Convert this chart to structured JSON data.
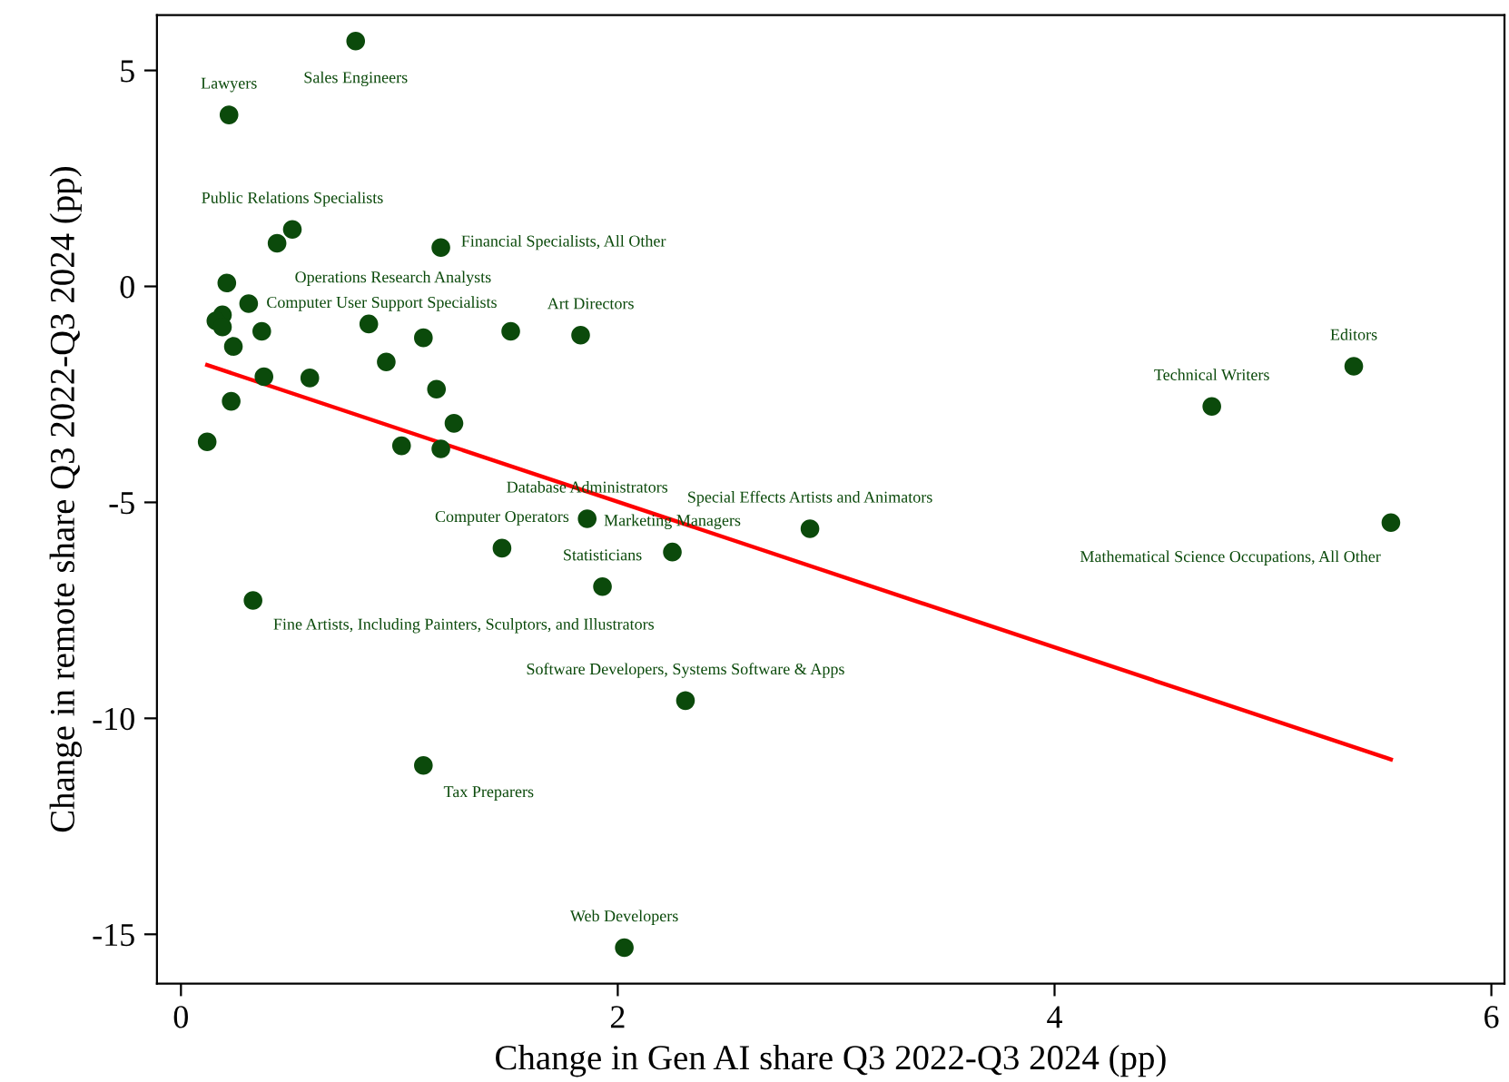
{
  "chart_data": {
    "type": "scatter",
    "xlabel": "Change in Gen AI share Q3 2022-Q3 2024 (pp)",
    "ylabel": "Change in remote share Q3 2022-Q3 2024 (pp)",
    "xlim": [
      -0.11,
      6.06
    ],
    "ylim": [
      -16.14,
      6.28
    ],
    "xticks": [
      0,
      2,
      4,
      6
    ],
    "yticks": [
      5,
      0,
      -5,
      -10,
      -15
    ],
    "grid": false,
    "legend": false,
    "marker": "circle",
    "series": [
      {
        "color": "#0b4a0b",
        "x": [
          0.8,
          0.22,
          0.51,
          0.44,
          1.19,
          0.21,
          0.19,
          0.16,
          0.19,
          0.31,
          0.37,
          0.86,
          1.11,
          1.51,
          1.83,
          0.24,
          0.94,
          0.38,
          0.59,
          1.17,
          0.23,
          1.25,
          0.12,
          1.01,
          1.19,
          1.86,
          1.47,
          2.25,
          2.88,
          1.93,
          0.33,
          2.31,
          1.11,
          2.03,
          5.37,
          4.72,
          5.54
        ],
        "values": [
          5.68,
          3.97,
          1.32,
          1.0,
          0.9,
          0.08,
          -0.66,
          -0.8,
          -0.94,
          -0.4,
          -1.04,
          -0.87,
          -1.19,
          -1.04,
          -1.13,
          -1.39,
          -1.75,
          -2.09,
          -2.12,
          -2.38,
          -2.66,
          -3.17,
          -3.6,
          -3.69,
          -3.76,
          -5.38,
          -6.06,
          -6.15,
          -5.61,
          -6.95,
          -7.27,
          -9.59,
          -11.09,
          -15.31,
          -1.85,
          -2.78,
          -5.47
        ]
      },
      {
        "type": "line",
        "color": "#ff0000",
        "line_style": "solid",
        "marker": "none",
        "x": [
          0.12,
          5.54
        ],
        "values": [
          -1.82,
          -10.95
        ]
      }
    ],
    "annotations": [
      {
        "text": "Sales Engineers",
        "x": 0.8,
        "y": 5.68
      },
      {
        "text": "Lawyers",
        "x": 0.22,
        "y": 3.97
      },
      {
        "text": "Public Relations Specialists",
        "x": 0.51,
        "y": 1.32
      },
      {
        "text": "Operations Research Analysts",
        "x": 0.44,
        "y": 1.0
      },
      {
        "text": "Financial Specialists, All Other",
        "x": 1.19,
        "y": 0.9
      },
      {
        "text": "Computer User Support Specialists",
        "x": 0.31,
        "y": -0.4
      },
      {
        "text": "Art Directors",
        "x": 1.83,
        "y": -1.13
      },
      {
        "text": "Database Administrators",
        "x": 1.86,
        "y": -5.38
      },
      {
        "text": "Computer Operators",
        "x": 1.47,
        "y": -6.06
      },
      {
        "text": "Marketing Managers",
        "x": 2.25,
        "y": -6.15
      },
      {
        "text": "Special Effects Artists and Animators",
        "x": 2.88,
        "y": -5.61
      },
      {
        "text": "Statisticians",
        "x": 1.93,
        "y": -6.95
      },
      {
        "text": "Fine Artists, Including Painters, Sculptors, and Illustrators",
        "x": 0.33,
        "y": -7.27
      },
      {
        "text": "Software Developers, Systems Software & Apps",
        "x": 2.31,
        "y": -9.59
      },
      {
        "text": "Tax Preparers",
        "x": 1.11,
        "y": -11.09
      },
      {
        "text": "Web Developers",
        "x": 2.03,
        "y": -15.31
      },
      {
        "text": "Editors",
        "x": 5.37,
        "y": -1.85
      },
      {
        "text": "Technical Writers",
        "x": 4.72,
        "y": -2.78
      },
      {
        "text": "Mathematical Science Occupations, All Other",
        "x": 5.54,
        "y": -5.47
      }
    ]
  }
}
